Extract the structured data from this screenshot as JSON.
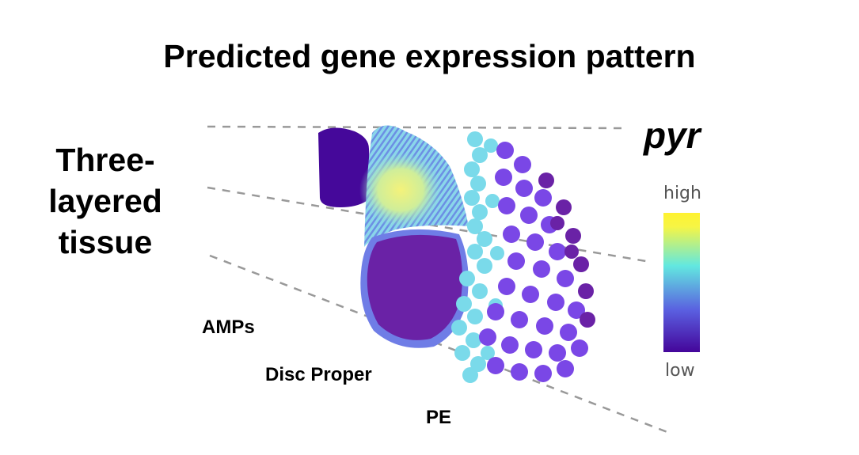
{
  "title": "Predicted gene expression pattern",
  "side_label": {
    "lines": [
      "Three-",
      "layered",
      "tissue"
    ]
  },
  "layers": {
    "amps": "AMPs",
    "disc_proper": "Disc Proper",
    "pe": "PE"
  },
  "gene_name": "pyr",
  "colorbar": {
    "high_label": "high",
    "low_label": "low",
    "colors": [
      "#fff230",
      "#62e8e0",
      "#5a5fe0",
      "#44059a"
    ]
  },
  "colors": {
    "low": "#45089a",
    "dark": "#6a22a6",
    "mid_purple": "#7a47e6",
    "cyan": "#7adaea",
    "yellow": "#f2f07a"
  }
}
